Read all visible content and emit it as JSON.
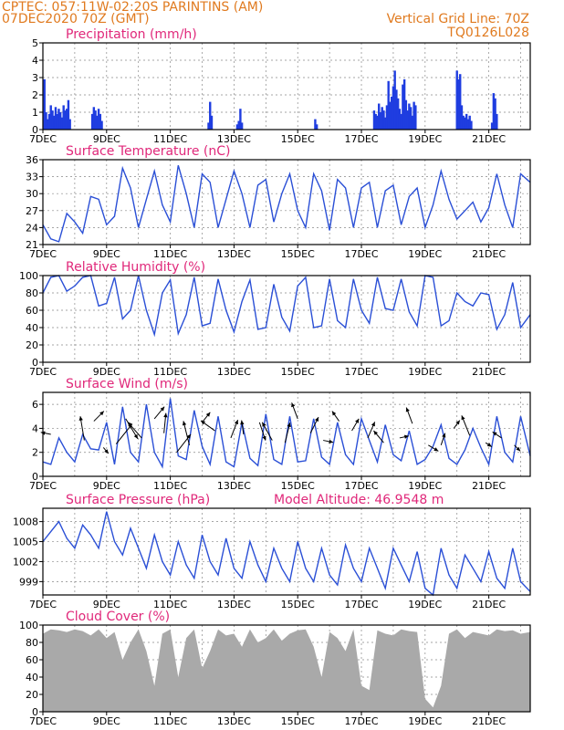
{
  "header": {
    "left_line1": "CPTEC:   057:11W-02:20S   PARINTINS (AM)",
    "left_line2": "07DEC2020 70Z (GMT)",
    "right_line1": "Vertical Grid Line: 70Z",
    "right_line2": "TQ0126L028"
  },
  "x_tick_labels": [
    "7DEC",
    "9DEC",
    "11DEC",
    "13DEC",
    "15DEC",
    "17DEC",
    "19DEC",
    "21DEC"
  ],
  "chart_data": [
    {
      "type": "bar",
      "title": "Precipitation (mm/h)",
      "xlabel": "",
      "ylabel": "",
      "xlim": [
        0,
        15.3
      ],
      "ylim": [
        0,
        5
      ],
      "yticks": [
        0,
        1,
        2,
        3,
        4,
        5
      ],
      "x": [
        0.05,
        0.1,
        0.15,
        0.2,
        0.25,
        0.3,
        0.35,
        0.4,
        0.45,
        0.5,
        0.55,
        0.6,
        0.65,
        0.7,
        0.75,
        0.8,
        0.85,
        1.55,
        1.6,
        1.65,
        1.7,
        1.75,
        1.8,
        1.85,
        5.2,
        5.25,
        5.3,
        6.1,
        6.15,
        6.2,
        6.25,
        8.55,
        8.6,
        10.4,
        10.45,
        10.5,
        10.55,
        10.6,
        10.65,
        10.7,
        10.75,
        10.8,
        10.85,
        10.9,
        10.95,
        11.0,
        11.05,
        11.1,
        11.15,
        11.2,
        11.25,
        11.3,
        11.35,
        11.4,
        11.45,
        11.5,
        11.55,
        11.6,
        11.65,
        11.7,
        13.0,
        13.05,
        13.1,
        13.15,
        13.2,
        13.25,
        13.3,
        13.35,
        13.4,
        13.45,
        14.1,
        14.15,
        14.2,
        14.25
      ],
      "values": [
        2.9,
        1.0,
        0.6,
        0.9,
        1.4,
        1.1,
        0.8,
        1.3,
        0.9,
        1.2,
        1.0,
        0.7,
        1.4,
        1.1,
        1.2,
        1.7,
        0.6,
        0.9,
        1.3,
        1.1,
        0.8,
        1.2,
        0.9,
        0.5,
        0.4,
        1.6,
        0.8,
        0.3,
        0.5,
        1.2,
        0.4,
        0.6,
        0.3,
        1.1,
        0.9,
        0.8,
        1.5,
        1.0,
        1.3,
        1.1,
        0.7,
        1.4,
        2.8,
        1.6,
        1.9,
        2.5,
        3.4,
        2.3,
        1.8,
        1.2,
        0.9,
        2.6,
        2.9,
        1.7,
        1.1,
        1.5,
        1.3,
        0.8,
        1.6,
        1.4,
        3.4,
        2.9,
        3.2,
        1.4,
        0.8,
        0.7,
        0.9,
        0.6,
        0.8,
        0.5,
        0.4,
        2.1,
        1.8,
        0.9
      ]
    },
    {
      "type": "line",
      "title": "Surface Temperature (nC)",
      "xlabel": "",
      "ylabel": "",
      "xlim": [
        0,
        15.3
      ],
      "ylim": [
        21,
        36
      ],
      "yticks": [
        21,
        24,
        27,
        30,
        33,
        36
      ],
      "x": [
        0,
        0.25,
        0.5,
        0.75,
        1.0,
        1.25,
        1.5,
        1.75,
        2.0,
        2.25,
        2.5,
        2.75,
        3.0,
        3.25,
        3.5,
        3.75,
        4.0,
        4.25,
        4.5,
        4.75,
        5.0,
        5.25,
        5.5,
        5.75,
        6.0,
        6.25,
        6.5,
        6.75,
        7.0,
        7.25,
        7.5,
        7.75,
        8.0,
        8.25,
        8.5,
        8.75,
        9.0,
        9.25,
        9.5,
        9.75,
        10.0,
        10.25,
        10.5,
        10.75,
        11.0,
        11.25,
        11.5,
        11.75,
        12.0,
        12.25,
        12.5,
        12.75,
        13.0,
        13.25,
        13.5,
        13.75,
        14.0,
        14.25,
        14.5,
        14.75,
        15.0,
        15.3
      ],
      "values": [
        24.5,
        22.0,
        21.5,
        26.5,
        25.0,
        23.0,
        29.5,
        29.0,
        24.5,
        26.0,
        34.5,
        31.0,
        24.0,
        29.0,
        34.0,
        28.0,
        25.0,
        35.0,
        30.0,
        24.0,
        33.5,
        32.0,
        24.0,
        29.0,
        34.0,
        30.0,
        24.0,
        31.5,
        32.5,
        25.0,
        30.0,
        33.5,
        27.0,
        24.0,
        33.5,
        30.5,
        23.5,
        32.5,
        31.0,
        24.0,
        31.0,
        32.0,
        24.0,
        30.5,
        31.5,
        24.5,
        29.5,
        31.0,
        24.0,
        28.0,
        34.0,
        29.0,
        25.5,
        27.0,
        28.5,
        25.0,
        27.5,
        33.5,
        28.0,
        24.0,
        33.5,
        32.0
      ]
    },
    {
      "type": "line",
      "title": "Relative Humidity (%)",
      "xlabel": "",
      "ylabel": "",
      "xlim": [
        0,
        15.3
      ],
      "ylim": [
        0,
        100
      ],
      "yticks": [
        0,
        20,
        40,
        60,
        80,
        100
      ],
      "x": [
        0,
        0.25,
        0.5,
        0.75,
        1.0,
        1.25,
        1.5,
        1.75,
        2.0,
        2.25,
        2.5,
        2.75,
        3.0,
        3.25,
        3.5,
        3.75,
        4.0,
        4.25,
        4.5,
        4.75,
        5.0,
        5.25,
        5.5,
        5.75,
        6.0,
        6.25,
        6.5,
        6.75,
        7.0,
        7.25,
        7.5,
        7.75,
        8.0,
        8.25,
        8.5,
        8.75,
        9.0,
        9.25,
        9.5,
        9.75,
        10.0,
        10.25,
        10.5,
        10.75,
        11.0,
        11.25,
        11.5,
        11.75,
        12.0,
        12.25,
        12.5,
        12.75,
        13.0,
        13.25,
        13.5,
        13.75,
        14.0,
        14.25,
        14.5,
        14.75,
        15.0,
        15.3
      ],
      "values": [
        80,
        98,
        100,
        82,
        88,
        98,
        100,
        65,
        68,
        98,
        50,
        60,
        100,
        60,
        32,
        80,
        95,
        33,
        55,
        98,
        42,
        45,
        96,
        60,
        35,
        70,
        95,
        38,
        40,
        90,
        52,
        36,
        88,
        98,
        40,
        42,
        96,
        48,
        40,
        96,
        60,
        45,
        98,
        62,
        60,
        96,
        58,
        42,
        100,
        98,
        42,
        48,
        80,
        70,
        65,
        80,
        78,
        38,
        55,
        92,
        40,
        55
      ]
    },
    {
      "type": "line",
      "title": "Surface Wind (m/s)",
      "xlabel": "",
      "ylabel": "",
      "xlim": [
        0,
        15.3
      ],
      "ylim": [
        0,
        7
      ],
      "yticks": [
        0,
        2,
        4,
        6
      ],
      "x": [
        0,
        0.25,
        0.5,
        0.75,
        1.0,
        1.25,
        1.5,
        1.75,
        2.0,
        2.25,
        2.5,
        2.75,
        3.0,
        3.25,
        3.5,
        3.75,
        4.0,
        4.25,
        4.5,
        4.75,
        5.0,
        5.25,
        5.5,
        5.75,
        6.0,
        6.25,
        6.5,
        6.75,
        7.0,
        7.25,
        7.5,
        7.75,
        8.0,
        8.25,
        8.5,
        8.75,
        9.0,
        9.25,
        9.5,
        9.75,
        10.0,
        10.25,
        10.5,
        10.75,
        11.0,
        11.25,
        11.5,
        11.75,
        12.0,
        12.25,
        12.5,
        12.75,
        13.0,
        13.25,
        13.5,
        13.75,
        14.0,
        14.25,
        14.5,
        14.75,
        15.0,
        15.3
      ],
      "values": [
        1.2,
        1.0,
        3.2,
        2.0,
        1.2,
        3.5,
        2.3,
        2.2,
        4.5,
        1.0,
        5.8,
        2.0,
        1.2,
        6.0,
        2.0,
        0.8,
        6.5,
        1.7,
        1.4,
        5.5,
        2.5,
        1.0,
        5.0,
        1.2,
        0.8,
        4.5,
        1.5,
        0.9,
        5.2,
        1.4,
        1.0,
        5.0,
        1.2,
        1.3,
        4.8,
        1.6,
        1.0,
        4.5,
        1.8,
        1.0,
        4.8,
        3.0,
        1.2,
        4.3,
        1.8,
        1.3,
        3.8,
        1.0,
        1.4,
        2.5,
        4.3,
        1.5,
        1.0,
        2.2,
        4.0,
        2.4,
        1.0,
        5.0,
        2.0,
        1.2,
        5.0,
        1.7
      ]
    },
    {
      "type": "line",
      "title": "Surface Pressure (hPa)",
      "annotation": "Model Altitude: 46.9548  m",
      "xlabel": "",
      "ylabel": "",
      "xlim": [
        0,
        15.3
      ],
      "ylim": [
        997,
        1010
      ],
      "yticks": [
        999,
        1002,
        1005,
        1008
      ],
      "x": [
        0,
        0.25,
        0.5,
        0.75,
        1.0,
        1.25,
        1.5,
        1.75,
        2.0,
        2.25,
        2.5,
        2.75,
        3.0,
        3.25,
        3.5,
        3.75,
        4.0,
        4.25,
        4.5,
        4.75,
        5.0,
        5.25,
        5.5,
        5.75,
        6.0,
        6.25,
        6.5,
        6.75,
        7.0,
        7.25,
        7.5,
        7.75,
        8.0,
        8.25,
        8.5,
        8.75,
        9.0,
        9.25,
        9.5,
        9.75,
        10.0,
        10.25,
        10.5,
        10.75,
        11.0,
        11.25,
        11.5,
        11.75,
        12.0,
        12.25,
        12.5,
        12.75,
        13.0,
        13.25,
        13.5,
        13.75,
        14.0,
        14.25,
        14.5,
        14.75,
        15.0,
        15.3
      ],
      "values": [
        1005,
        1006.5,
        1008,
        1005.5,
        1004,
        1007.5,
        1006,
        1004,
        1009.5,
        1005,
        1003,
        1007,
        1004,
        1001,
        1006,
        1002,
        1000,
        1005,
        1001.5,
        999.5,
        1006,
        1002,
        1000,
        1005.5,
        1001,
        999.5,
        1005,
        1001.5,
        999,
        1004,
        1001,
        999,
        1005,
        1001,
        999,
        1004,
        1000,
        998.5,
        1004.5,
        1001,
        999,
        1004,
        1001,
        998,
        1004,
        1001.5,
        999,
        1003.5,
        998,
        997,
        1004,
        1000,
        998,
        1003,
        1001,
        999,
        1003.5,
        999.5,
        998,
        1004,
        999,
        997.5
      ]
    },
    {
      "type": "area",
      "title": "Cloud Cover (%)",
      "xlabel": "",
      "ylabel": "",
      "xlim": [
        0,
        15.3
      ],
      "ylim": [
        0,
        100
      ],
      "yticks": [
        0,
        20,
        40,
        60,
        80,
        100
      ],
      "x": [
        0,
        0.25,
        0.5,
        0.75,
        1.0,
        1.25,
        1.5,
        1.75,
        2.0,
        2.25,
        2.5,
        2.75,
        3.0,
        3.25,
        3.5,
        3.75,
        4.0,
        4.25,
        4.5,
        4.75,
        5.0,
        5.25,
        5.5,
        5.75,
        6.0,
        6.25,
        6.5,
        6.75,
        7.0,
        7.25,
        7.5,
        7.75,
        8.0,
        8.25,
        8.5,
        8.75,
        9.0,
        9.25,
        9.5,
        9.75,
        10.0,
        10.25,
        10.5,
        10.75,
        11.0,
        11.25,
        11.5,
        11.75,
        12.0,
        12.25,
        12.5,
        12.75,
        13.0,
        13.25,
        13.5,
        13.75,
        14.0,
        14.25,
        14.5,
        14.75,
        15.0,
        15.3
      ],
      "values": [
        90,
        95,
        94,
        92,
        95,
        93,
        88,
        95,
        85,
        92,
        60,
        80,
        95,
        70,
        30,
        90,
        95,
        40,
        85,
        95,
        50,
        70,
        95,
        88,
        90,
        75,
        95,
        80,
        85,
        95,
        82,
        90,
        94,
        95,
        75,
        40,
        92,
        85,
        70,
        95,
        30,
        25,
        94,
        90,
        88,
        95,
        93,
        92,
        15,
        5,
        30,
        90,
        95,
        85,
        92,
        90,
        88,
        95,
        93,
        94,
        90,
        92
      ]
    },
    {
      "type": "scatter",
      "title": "Surface Wind vectors",
      "note": "wind direction arrows overlaid on the wind panel",
      "x": [
        0.25,
        1.3,
        1.6,
        1.9,
        2.3,
        2.6,
        3.1,
        3.5,
        3.8,
        4.2,
        4.6,
        5.0,
        5.4,
        5.9,
        6.3,
        6.8,
        7.2,
        7.6,
        8.0,
        8.4,
        8.8,
        9.3,
        9.7,
        10.2,
        10.7,
        11.2,
        11.6,
        12.1,
        12.5,
        12.9,
        13.4,
        13.9,
        14.4,
        14.8
      ],
      "values": [
        3.5,
        3.0,
        4.6,
        2.4,
        2.7,
        4.8,
        3.2,
        4.8,
        3.6,
        2.0,
        2.6,
        4.5,
        3.8,
        3.2,
        3.5,
        4.5,
        3.0,
        2.8,
        4.8,
        3.6,
        3.0,
        4.6,
        3.8,
        3.2,
        2.8,
        3.2,
        4.4,
        2.6,
        2.6,
        4.0,
        3.4,
        2.8,
        3.2,
        2.6
      ],
      "u": [
        -0.5,
        -0.2,
        0.5,
        0.25,
        0.8,
        0.6,
        -0.7,
        0.5,
        0.1,
        0.7,
        -0.3,
        0.4,
        -0.7,
        0.35,
        -0.1,
        0.3,
        -0.5,
        0.25,
        -0.3,
        0.4,
        0.5,
        -0.35,
        0.35,
        0.35,
        -0.5,
        0.45,
        -0.3,
        0.5,
        0.2,
        0.3,
        -0.4,
        0.3,
        -0.45,
        0.3
      ],
      "v": [
        0.1,
        1.2,
        0.5,
        -0.3,
        1.0,
        -1.0,
        0.8,
        0.6,
        1.0,
        0.9,
        1.2,
        0.5,
        0.5,
        0.9,
        0.7,
        -0.9,
        0.9,
        1.0,
        0.8,
        0.8,
        -0.1,
        0.5,
        0.6,
        0.8,
        0.6,
        0.1,
        0.8,
        -0.3,
        0.6,
        0.4,
        1.0,
        -0.2,
        0.3,
        -0.3
      ]
    }
  ]
}
